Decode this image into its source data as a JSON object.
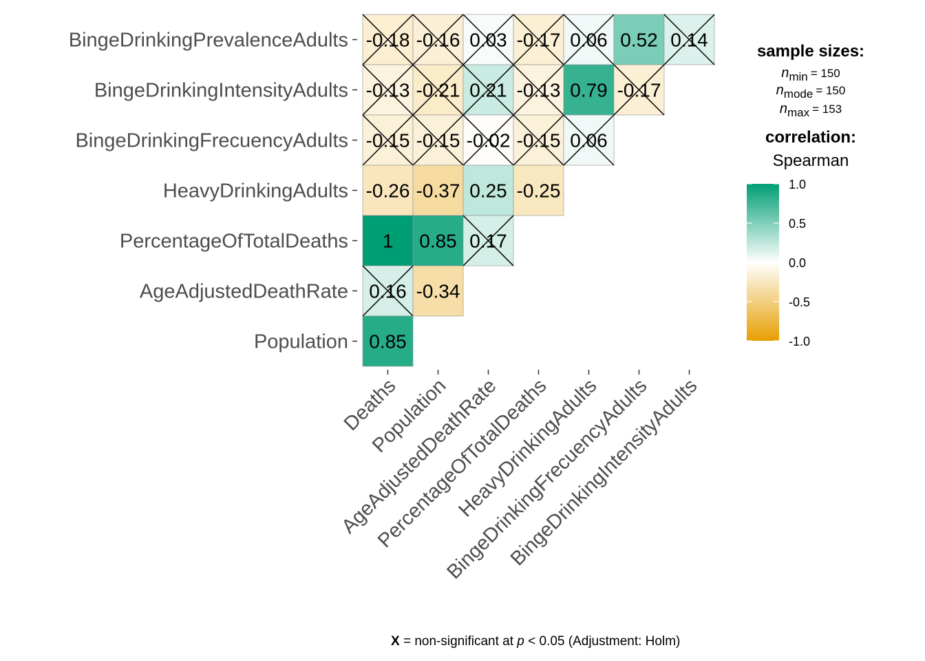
{
  "chart_data": {
    "type": "heatmap",
    "method": "Spearman",
    "row_labels": [
      "BingeDrinkingPrevalenceAdults",
      "BingeDrinkingIntensityAdults",
      "BingeDrinkingFrecuencyAdults",
      "HeavyDrinkingAdults",
      "PercentageOfTotalDeaths",
      "AgeAdjustedDeathRate",
      "Population"
    ],
    "col_labels": [
      "Deaths",
      "Population",
      "AgeAdjustedDeathRate",
      "PercentageOfTotalDeaths",
      "HeavyDrinkingAdults",
      "BingeDrinkingFrecuencyAdults",
      "BingeDrinkingIntensityAdults"
    ],
    "cells": [
      {
        "row": 0,
        "col": 0,
        "value": -0.18,
        "label": "-0.18",
        "nonsignificant": true
      },
      {
        "row": 0,
        "col": 1,
        "value": -0.16,
        "label": "-0.16",
        "nonsignificant": true
      },
      {
        "row": 0,
        "col": 2,
        "value": 0.03,
        "label": "0.03",
        "nonsignificant": true
      },
      {
        "row": 0,
        "col": 3,
        "value": -0.17,
        "label": "-0.17",
        "nonsignificant": true
      },
      {
        "row": 0,
        "col": 4,
        "value": 0.06,
        "label": "0.06",
        "nonsignificant": true
      },
      {
        "row": 0,
        "col": 5,
        "value": 0.52,
        "label": "0.52",
        "nonsignificant": false
      },
      {
        "row": 0,
        "col": 6,
        "value": 0.14,
        "label": "0.14",
        "nonsignificant": true
      },
      {
        "row": 1,
        "col": 0,
        "value": -0.13,
        "label": "-0.13",
        "nonsignificant": true
      },
      {
        "row": 1,
        "col": 1,
        "value": -0.21,
        "label": "-0.21",
        "nonsignificant": true
      },
      {
        "row": 1,
        "col": 2,
        "value": 0.21,
        "label": "0.21",
        "nonsignificant": true
      },
      {
        "row": 1,
        "col": 3,
        "value": -0.13,
        "label": "-0.13",
        "nonsignificant": true
      },
      {
        "row": 1,
        "col": 4,
        "value": 0.79,
        "label": "0.79",
        "nonsignificant": false
      },
      {
        "row": 1,
        "col": 5,
        "value": -0.17,
        "label": "-0.17",
        "nonsignificant": true
      },
      {
        "row": 2,
        "col": 0,
        "value": -0.15,
        "label": "-0.15",
        "nonsignificant": true
      },
      {
        "row": 2,
        "col": 1,
        "value": -0.15,
        "label": "-0.15",
        "nonsignificant": true
      },
      {
        "row": 2,
        "col": 2,
        "value": -0.02,
        "label": "-0.02",
        "nonsignificant": true
      },
      {
        "row": 2,
        "col": 3,
        "value": -0.15,
        "label": "-0.15",
        "nonsignificant": true
      },
      {
        "row": 2,
        "col": 4,
        "value": 0.06,
        "label": "0.06",
        "nonsignificant": true
      },
      {
        "row": 3,
        "col": 0,
        "value": -0.26,
        "label": "-0.26",
        "nonsignificant": false
      },
      {
        "row": 3,
        "col": 1,
        "value": -0.37,
        "label": "-0.37",
        "nonsignificant": false
      },
      {
        "row": 3,
        "col": 2,
        "value": 0.25,
        "label": "0.25",
        "nonsignificant": false
      },
      {
        "row": 3,
        "col": 3,
        "value": -0.25,
        "label": "-0.25",
        "nonsignificant": false
      },
      {
        "row": 4,
        "col": 0,
        "value": 1.0,
        "label": "1",
        "nonsignificant": false
      },
      {
        "row": 4,
        "col": 1,
        "value": 0.85,
        "label": "0.85",
        "nonsignificant": false
      },
      {
        "row": 4,
        "col": 2,
        "value": 0.17,
        "label": "0.17",
        "nonsignificant": true
      },
      {
        "row": 5,
        "col": 0,
        "value": 0.16,
        "label": "0.16",
        "nonsignificant": true
      },
      {
        "row": 5,
        "col": 1,
        "value": -0.34,
        "label": "-0.34",
        "nonsignificant": false
      },
      {
        "row": 6,
        "col": 0,
        "value": 0.85,
        "label": "0.85",
        "nonsignificant": false
      }
    ],
    "color_scale": {
      "low": "#E69F00",
      "mid": "#FFFFFF",
      "high": "#009E73",
      "limits": [
        -1.0,
        1.0
      ],
      "ticks": [
        "1.0",
        "0.5",
        "0.0",
        "-0.5",
        "-1.0"
      ]
    }
  },
  "legend": {
    "sample_title": "sample sizes:",
    "n_min_label": "min",
    "n_min_value": "= 150",
    "n_mode_label": "mode",
    "n_mode_value": "= 150",
    "n_max_label": "max",
    "n_max_value": "= 153",
    "n_symbol": "n",
    "corr_title": "correlation:",
    "corr_method": "Spearman"
  },
  "caption": {
    "x_symbol": "X",
    "text_before_p": " = non-significant at ",
    "p_symbol": "p",
    "text_after_p": " < 0.05 (Adjustment: Holm)"
  }
}
